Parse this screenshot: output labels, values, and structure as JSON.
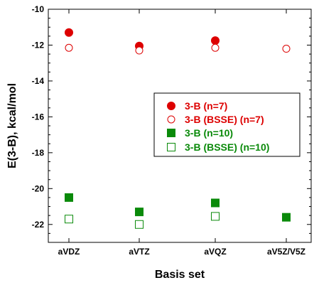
{
  "chart_data": {
    "type": "scatter",
    "title": "",
    "xlabel": "Basis set",
    "ylabel": "E(3-B), kcal/mol",
    "categories": [
      "aVDZ",
      "aVTZ",
      "aVQZ",
      "aV5Z/V5Z"
    ],
    "ylim": [
      -23,
      -10
    ],
    "yticks": [
      -10,
      -12,
      -14,
      -16,
      -18,
      -20,
      -22
    ],
    "grid": false,
    "legend_position": "right",
    "series": [
      {
        "name": "3-B (n=7)",
        "marker": "filled-circle",
        "color": "#dd0000",
        "values": [
          -11.3,
          -12.05,
          -11.75,
          null
        ]
      },
      {
        "name": "3-B (BSSE) (n=7)",
        "marker": "open-circle",
        "color": "#dd0000",
        "values": [
          -12.15,
          -12.3,
          -12.15,
          -12.2
        ]
      },
      {
        "name": "3-B (n=10)",
        "marker": "filled-square",
        "color": "#0a8a0a",
        "values": [
          -20.5,
          -21.3,
          -20.8,
          -21.6
        ]
      },
      {
        "name": "3-B (BSSE) (n=10)",
        "marker": "open-square",
        "color": "#0a8a0a",
        "values": [
          -21.7,
          -22.0,
          -21.55,
          null
        ]
      }
    ]
  }
}
